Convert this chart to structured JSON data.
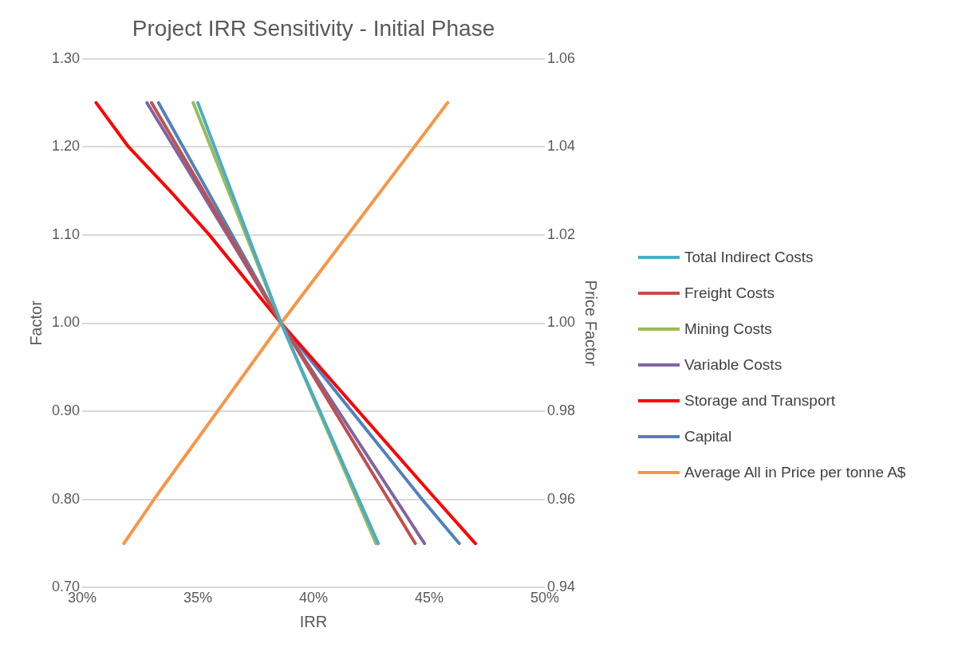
{
  "chart_data": {
    "type": "line",
    "title": "Project IRR Sensitivity - Initial Phase",
    "xlabel": "IRR",
    "ylabel": "Factor",
    "y2label": "Price Factor",
    "xlim": [
      30,
      50
    ],
    "xticks": [
      {
        "value": 30,
        "label": "30%"
      },
      {
        "value": 35,
        "label": "35%"
      },
      {
        "value": 40,
        "label": "40%"
      },
      {
        "value": 45,
        "label": "45%"
      },
      {
        "value": 50,
        "label": "50%"
      }
    ],
    "ylim": [
      0.7,
      1.3
    ],
    "yticks": [
      {
        "value": 0.7,
        "label": "0.70"
      },
      {
        "value": 0.8,
        "label": "0.80"
      },
      {
        "value": 0.9,
        "label": "0.90"
      },
      {
        "value": 1.0,
        "label": "1.00"
      },
      {
        "value": 1.1,
        "label": "1.10"
      },
      {
        "value": 1.2,
        "label": "1.20"
      },
      {
        "value": 1.3,
        "label": "1.30"
      }
    ],
    "y2lim": [
      0.94,
      1.06
    ],
    "y2ticks": [
      {
        "value": 0.94,
        "label": "0.94"
      },
      {
        "value": 0.96,
        "label": "0.96"
      },
      {
        "value": 0.98,
        "label": "0.98"
      },
      {
        "value": 1.0,
        "label": "1.00"
      },
      {
        "value": 1.02,
        "label": "1.02"
      },
      {
        "value": 1.04,
        "label": "1.04"
      },
      {
        "value": 1.06,
        "label": "1.06"
      }
    ],
    "grid": "y",
    "legend": "right",
    "marker": "none",
    "line_style": "solid",
    "series": [
      {
        "name": "Total Indirect Costs",
        "color": "#4bacc6",
        "x": [
          35.0,
          38.6,
          42.8
        ],
        "values": [
          1.25,
          1.0,
          0.75
        ]
      },
      {
        "name": "Freight Costs",
        "color": "#c0504d",
        "x": [
          33.0,
          38.6,
          44.4
        ],
        "values": [
          1.25,
          1.0,
          0.75
        ]
      },
      {
        "name": "Mining Costs",
        "color": "#9bbb59",
        "x": [
          34.8,
          38.6,
          42.7
        ],
        "values": [
          1.25,
          1.0,
          0.75
        ]
      },
      {
        "name": "Variable Costs",
        "color": "#8064a2",
        "x": [
          32.8,
          38.6,
          44.8
        ],
        "values": [
          1.25,
          1.0,
          0.75
        ]
      },
      {
        "name": "Storage and Transport",
        "color": "#ff0000",
        "x": [
          30.6,
          32.0,
          33.8,
          35.5,
          38.6,
          45.3,
          47.0
        ],
        "values": [
          1.25,
          1.2,
          1.15,
          1.1,
          1.0,
          0.8,
          0.75
        ]
      },
      {
        "name": "Capital",
        "color": "#4f81bd",
        "x": [
          33.3,
          38.6,
          44.7,
          46.3
        ],
        "values": [
          1.25,
          1.0,
          0.8,
          0.75
        ]
      },
      {
        "name": "Average All in Price per tonne A$",
        "color": "#f79646",
        "axis": "y2",
        "x": [
          31.8,
          33.1,
          38.6,
          45.8
        ],
        "values": [
          0.95,
          0.96,
          1.0,
          1.05
        ]
      }
    ]
  }
}
